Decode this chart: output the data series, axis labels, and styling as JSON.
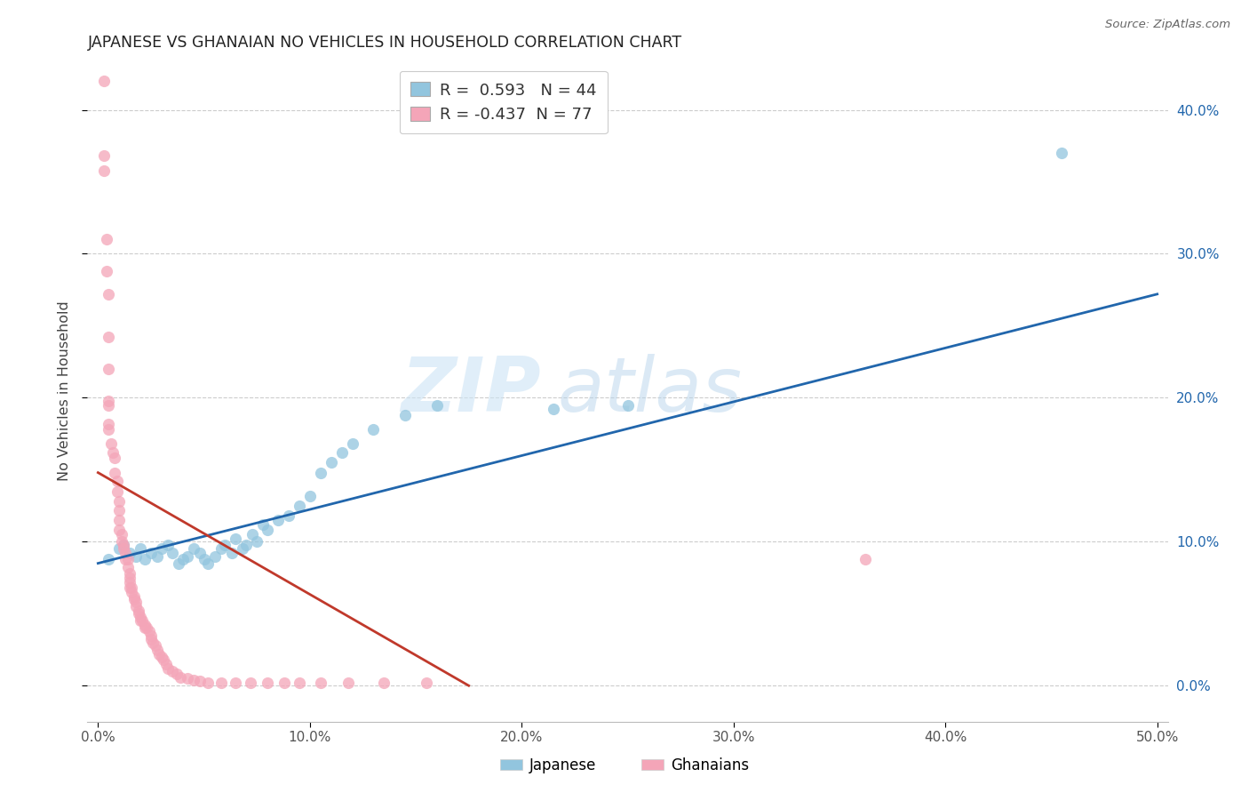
{
  "title": "JAPANESE VS GHANAIAN NO VEHICLES IN HOUSEHOLD CORRELATION CHART",
  "source": "Source: ZipAtlas.com",
  "ylabel": "No Vehicles in Household",
  "xlim": [
    -0.005,
    0.505
  ],
  "ylim": [
    -0.025,
    0.435
  ],
  "x_ticks": [
    0.0,
    0.1,
    0.2,
    0.3,
    0.4,
    0.5
  ],
  "x_tick_labels": [
    "0.0%",
    "10.0%",
    "20.0%",
    "30.0%",
    "40.0%",
    "50.0%"
  ],
  "y_ticks": [
    0.0,
    0.1,
    0.2,
    0.3,
    0.4
  ],
  "y_tick_labels": [
    "0.0%",
    "10.0%",
    "20.0%",
    "30.0%",
    "40.0%"
  ],
  "blue_color": "#92c5de",
  "pink_color": "#f4a5b8",
  "blue_line_color": "#2166ac",
  "pink_line_color": "#c0392b",
  "legend_blue_r": "0.593",
  "legend_blue_n": "44",
  "legend_pink_r": "-0.437",
  "legend_pink_n": "77",
  "background_color": "#ffffff",
  "grid_color": "#cccccc",
  "blue_line_x0": 0.0,
  "blue_line_y0": 0.085,
  "blue_line_x1": 0.5,
  "blue_line_y1": 0.272,
  "pink_line_x0": 0.0,
  "pink_line_y0": 0.148,
  "pink_line_x1": 0.175,
  "pink_line_y1": 0.0,
  "blue_points_x": [
    0.005,
    0.01,
    0.012,
    0.015,
    0.018,
    0.02,
    0.022,
    0.025,
    0.028,
    0.03,
    0.033,
    0.035,
    0.038,
    0.04,
    0.042,
    0.045,
    0.048,
    0.05,
    0.052,
    0.055,
    0.058,
    0.06,
    0.063,
    0.065,
    0.068,
    0.07,
    0.073,
    0.075,
    0.078,
    0.08,
    0.085,
    0.09,
    0.095,
    0.1,
    0.105,
    0.11,
    0.115,
    0.12,
    0.13,
    0.145,
    0.16,
    0.215,
    0.25,
    0.455
  ],
  "blue_points_y": [
    0.088,
    0.095,
    0.098,
    0.092,
    0.09,
    0.095,
    0.088,
    0.092,
    0.09,
    0.095,
    0.098,
    0.092,
    0.085,
    0.088,
    0.09,
    0.095,
    0.092,
    0.088,
    0.085,
    0.09,
    0.095,
    0.098,
    0.092,
    0.102,
    0.095,
    0.098,
    0.105,
    0.1,
    0.112,
    0.108,
    0.115,
    0.118,
    0.125,
    0.132,
    0.148,
    0.155,
    0.162,
    0.168,
    0.178,
    0.188,
    0.195,
    0.192,
    0.195,
    0.37
  ],
  "pink_points_x": [
    0.003,
    0.003,
    0.003,
    0.004,
    0.004,
    0.005,
    0.005,
    0.005,
    0.005,
    0.005,
    0.005,
    0.005,
    0.006,
    0.007,
    0.008,
    0.008,
    0.009,
    0.009,
    0.01,
    0.01,
    0.01,
    0.01,
    0.011,
    0.011,
    0.012,
    0.012,
    0.013,
    0.013,
    0.014,
    0.014,
    0.015,
    0.015,
    0.015,
    0.015,
    0.016,
    0.016,
    0.017,
    0.017,
    0.018,
    0.018,
    0.019,
    0.019,
    0.02,
    0.02,
    0.021,
    0.022,
    0.022,
    0.023,
    0.024,
    0.025,
    0.025,
    0.026,
    0.027,
    0.028,
    0.029,
    0.03,
    0.031,
    0.032,
    0.033,
    0.035,
    0.037,
    0.039,
    0.042,
    0.045,
    0.048,
    0.052,
    0.058,
    0.065,
    0.072,
    0.08,
    0.088,
    0.095,
    0.105,
    0.118,
    0.135,
    0.155,
    0.362
  ],
  "pink_points_y": [
    0.42,
    0.368,
    0.358,
    0.31,
    0.288,
    0.272,
    0.242,
    0.22,
    0.198,
    0.195,
    0.182,
    0.178,
    0.168,
    0.162,
    0.158,
    0.148,
    0.142,
    0.135,
    0.128,
    0.122,
    0.115,
    0.108,
    0.105,
    0.1,
    0.098,
    0.095,
    0.092,
    0.088,
    0.088,
    0.082,
    0.078,
    0.075,
    0.072,
    0.068,
    0.068,
    0.065,
    0.062,
    0.06,
    0.058,
    0.055,
    0.052,
    0.05,
    0.048,
    0.045,
    0.045,
    0.042,
    0.04,
    0.04,
    0.038,
    0.035,
    0.032,
    0.03,
    0.028,
    0.025,
    0.022,
    0.02,
    0.018,
    0.015,
    0.012,
    0.01,
    0.008,
    0.006,
    0.005,
    0.004,
    0.003,
    0.002,
    0.002,
    0.002,
    0.002,
    0.002,
    0.002,
    0.002,
    0.002,
    0.002,
    0.002,
    0.002,
    0.088
  ]
}
